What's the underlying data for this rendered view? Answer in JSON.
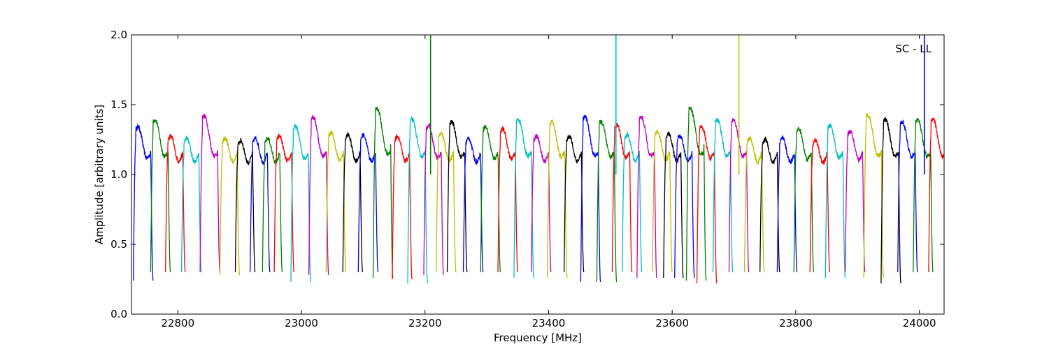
{
  "chart_data": {
    "type": "line",
    "title": "",
    "xlabel": "Frequency [MHz]",
    "ylabel": "Amplitude [arbitrary units]",
    "annotation": "SC - LL",
    "xlim": [
      22725,
      24040
    ],
    "ylim": [
      0.0,
      2.0
    ],
    "x_ticks": [
      22800,
      23000,
      23200,
      23400,
      23600,
      23800,
      24000
    ],
    "x_tick_labels": [
      "22800",
      "23000",
      "23200",
      "23400",
      "23600",
      "23800",
      "24000"
    ],
    "y_ticks": [
      0.0,
      0.5,
      1.0,
      1.5,
      2.0
    ],
    "y_tick_labels": [
      "0.0",
      "0.5",
      "1.0",
      "1.5",
      "2.0"
    ],
    "grid": false,
    "color_cycle": [
      "#0000ff",
      "#008000",
      "#ff0000",
      "#00bfbf",
      "#bf00bf",
      "#bfbf00",
      "#000000"
    ],
    "channel_width_mhz": 32,
    "channel_starts": [
      22728,
      22756,
      22780,
      22806,
      22836,
      22868,
      22893,
      22917,
      22937,
      22956,
      22983,
      23012,
      23040,
      23067,
      23092,
      23116,
      23147,
      23172,
      23198,
      23218,
      23236,
      23262,
      23290,
      23318,
      23344,
      23372,
      23398,
      23425,
      23452,
      23478,
      23503,
      23519,
      23543,
      23568,
      23586,
      23604,
      23623,
      23640,
      23666,
      23692,
      23717,
      23742,
      23770,
      23797,
      23823,
      23848,
      23880,
      23910,
      23938,
      23965,
      23990,
      24015
    ],
    "channel_peaks": [
      1.32,
      1.38,
      1.24,
      1.22,
      1.41,
      1.22,
      1.2,
      1.22,
      1.22,
      1.24,
      1.32,
      1.4,
      1.27,
      1.25,
      1.25,
      1.47,
      1.24,
      1.38,
      1.33,
      1.26,
      1.36,
      1.22,
      1.32,
      1.3,
      1.38,
      1.24,
      1.36,
      1.24,
      1.4,
      1.36,
      1.34,
      1.25,
      1.4,
      1.28,
      1.26,
      1.24,
      1.47,
      1.32,
      1.38,
      1.38,
      1.22,
      1.21,
      1.22,
      1.3,
      1.2,
      1.33,
      1.28,
      1.42,
      1.38,
      1.36,
      1.38,
      1.38
    ],
    "channel_minimums": [
      0.24,
      0.3,
      0.3,
      0.3,
      0.3,
      0.28,
      0.3,
      0.3,
      0.3,
      0.3,
      0.23,
      0.28,
      0.3,
      0.3,
      0.3,
      0.26,
      0.25,
      0.22,
      0.28,
      0.3,
      0.3,
      0.3,
      0.3,
      0.3,
      0.26,
      0.3,
      0.26,
      0.3,
      0.23,
      0.23,
      0.3,
      0.3,
      0.26,
      0.3,
      0.26,
      0.26,
      0.24,
      0.22,
      0.3,
      0.3,
      0.3,
      0.3,
      0.3,
      0.3,
      0.3,
      0.26,
      0.3,
      0.26,
      0.22,
      0.3,
      0.3,
      0.3
    ],
    "spikes": [
      {
        "x": 23209,
        "y": 2.0
      },
      {
        "x": 23509,
        "y": 2.0
      },
      {
        "x": 23708,
        "y": 2.0
      },
      {
        "x": 24008,
        "y": 2.0
      }
    ]
  }
}
